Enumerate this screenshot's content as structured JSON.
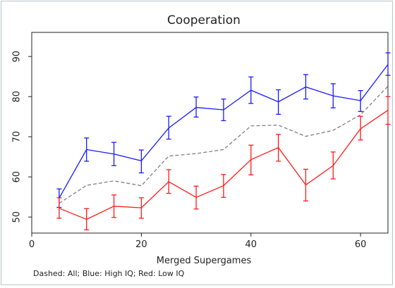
{
  "chart_data": {
    "type": "line",
    "title": "Cooperation",
    "xlabel": "Merged Supergames",
    "ylabel": "",
    "note": "Dashed: All; Blue: High IQ; Red: Low IQ",
    "xlim": [
      0,
      65
    ],
    "ylim": [
      46,
      96
    ],
    "xticks": [
      0,
      20,
      40,
      60
    ],
    "yticks": [
      50,
      60,
      70,
      80,
      90
    ],
    "grid": false,
    "x": [
      5,
      10,
      15,
      20,
      25,
      30,
      35,
      40,
      45,
      50,
      55,
      60,
      65
    ],
    "series": [
      {
        "color": "#1a1aff",
        "dashed": false,
        "values": [
          54.7,
          66.8,
          65.7,
          64.0,
          72.2,
          77.3,
          76.7,
          81.6,
          78.7,
          82.4,
          80.2,
          79.0,
          88.0
        ],
        "error_low": [
          52.4,
          63.9,
          62.8,
          61.0,
          69.4,
          74.9,
          74.0,
          78.3,
          75.6,
          79.4,
          77.2,
          76.3,
          85.3
        ],
        "error_high": [
          57.0,
          69.7,
          68.6,
          66.7,
          75.1,
          79.9,
          79.4,
          84.9,
          81.7,
          85.5,
          83.2,
          81.5,
          90.9
        ]
      },
      {
        "color": "#ff1a1a",
        "dashed": false,
        "values": [
          52.2,
          49.4,
          52.7,
          52.3,
          58.8,
          54.9,
          57.8,
          64.3,
          67.3,
          58.0,
          62.8,
          72.0,
          76.6
        ],
        "error_low": [
          49.7,
          46.8,
          49.9,
          49.7,
          55.9,
          52.0,
          54.9,
          60.5,
          63.9,
          54.0,
          59.5,
          69.2,
          73.1
        ],
        "error_high": [
          54.8,
          52.1,
          55.5,
          54.8,
          61.8,
          57.7,
          60.6,
          67.9,
          70.6,
          61.9,
          66.2,
          75.1,
          80.0
        ]
      },
      {
        "color": "#777777",
        "dashed": true,
        "values": [
          53.4,
          57.9,
          59.0,
          57.8,
          65.2,
          65.8,
          66.8,
          72.7,
          72.9,
          70.1,
          71.6,
          75.5,
          82.6
        ]
      }
    ]
  }
}
